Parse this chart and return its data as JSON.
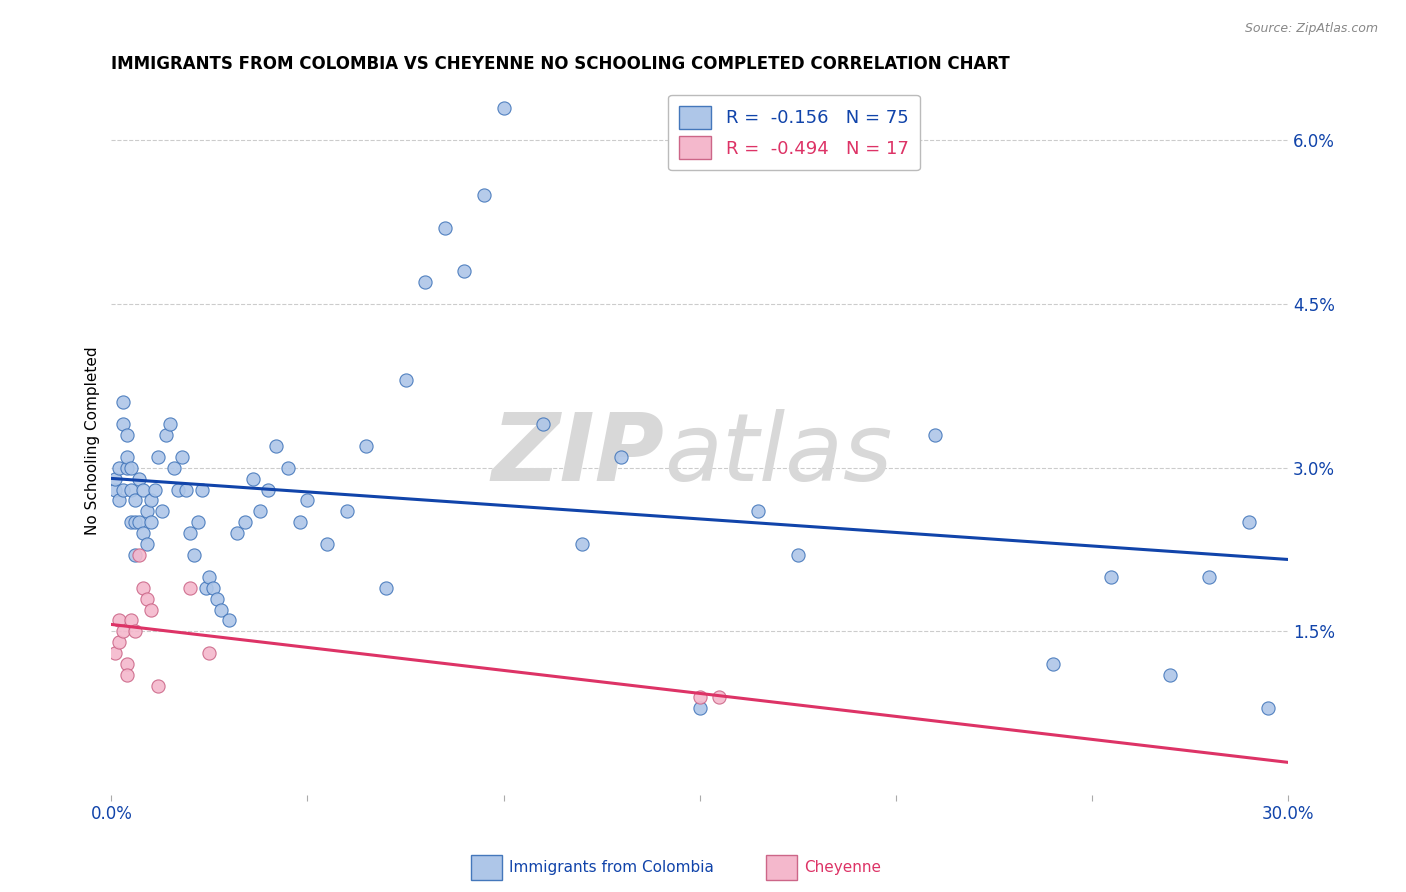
{
  "title": "IMMIGRANTS FROM COLOMBIA VS CHEYENNE NO SCHOOLING COMPLETED CORRELATION CHART",
  "source": "Source: ZipAtlas.com",
  "ylabel": "No Schooling Completed",
  "xlim": [
    0.0,
    0.3
  ],
  "ylim": [
    0.0,
    0.065
  ],
  "xticks": [
    0.0,
    0.05,
    0.1,
    0.15,
    0.2,
    0.25,
    0.3
  ],
  "yticks_right": [
    0.015,
    0.03,
    0.045,
    0.06
  ],
  "ytick_labels_right": [
    "1.5%",
    "3.0%",
    "4.5%",
    "6.0%"
  ],
  "xtick_labels": [
    "0.0%",
    "",
    "",
    "",
    "",
    "",
    "30.0%"
  ],
  "background_color": "#ffffff",
  "grid_color": "#cccccc",
  "colombia_color": "#aec6e8",
  "colombia_edge_color": "#4477bb",
  "cheyenne_color": "#f4b8cc",
  "cheyenne_edge_color": "#cc6688",
  "line_colombia_color": "#1144aa",
  "line_cheyenne_color": "#dd3366",
  "legend_R_colombia": "-0.156",
  "legend_N_colombia": "75",
  "legend_R_cheyenne": "-0.494",
  "legend_N_cheyenne": "17",
  "colombia_x": [
    0.001,
    0.001,
    0.002,
    0.002,
    0.003,
    0.003,
    0.003,
    0.004,
    0.004,
    0.004,
    0.005,
    0.005,
    0.005,
    0.006,
    0.006,
    0.006,
    0.007,
    0.007,
    0.008,
    0.008,
    0.009,
    0.009,
    0.01,
    0.01,
    0.011,
    0.012,
    0.013,
    0.014,
    0.015,
    0.016,
    0.017,
    0.018,
    0.019,
    0.02,
    0.021,
    0.022,
    0.023,
    0.024,
    0.025,
    0.026,
    0.027,
    0.028,
    0.03,
    0.032,
    0.034,
    0.036,
    0.038,
    0.04,
    0.042,
    0.045,
    0.048,
    0.05,
    0.055,
    0.06,
    0.065,
    0.07,
    0.075,
    0.08,
    0.085,
    0.09,
    0.095,
    0.1,
    0.11,
    0.12,
    0.13,
    0.15,
    0.165,
    0.175,
    0.21,
    0.24,
    0.255,
    0.27,
    0.28,
    0.29,
    0.295
  ],
  "colombia_y": [
    0.028,
    0.029,
    0.027,
    0.03,
    0.028,
    0.034,
    0.036,
    0.03,
    0.033,
    0.031,
    0.028,
    0.025,
    0.03,
    0.025,
    0.027,
    0.022,
    0.025,
    0.029,
    0.024,
    0.028,
    0.023,
    0.026,
    0.025,
    0.027,
    0.028,
    0.031,
    0.026,
    0.033,
    0.034,
    0.03,
    0.028,
    0.031,
    0.028,
    0.024,
    0.022,
    0.025,
    0.028,
    0.019,
    0.02,
    0.019,
    0.018,
    0.017,
    0.016,
    0.024,
    0.025,
    0.029,
    0.026,
    0.028,
    0.032,
    0.03,
    0.025,
    0.027,
    0.023,
    0.026,
    0.032,
    0.019,
    0.038,
    0.047,
    0.052,
    0.048,
    0.055,
    0.063,
    0.034,
    0.023,
    0.031,
    0.008,
    0.026,
    0.022,
    0.033,
    0.012,
    0.02,
    0.011,
    0.02,
    0.025,
    0.008
  ],
  "cheyenne_x": [
    0.001,
    0.002,
    0.002,
    0.003,
    0.004,
    0.004,
    0.005,
    0.006,
    0.007,
    0.008,
    0.009,
    0.01,
    0.012,
    0.02,
    0.025,
    0.15,
    0.155
  ],
  "cheyenne_y": [
    0.013,
    0.014,
    0.016,
    0.015,
    0.012,
    0.011,
    0.016,
    0.015,
    0.022,
    0.019,
    0.018,
    0.017,
    0.01,
    0.019,
    0.013,
    0.009,
    0.009
  ],
  "watermark_zip": "ZIP",
  "watermark_atlas": "atlas",
  "marker_size": 90
}
